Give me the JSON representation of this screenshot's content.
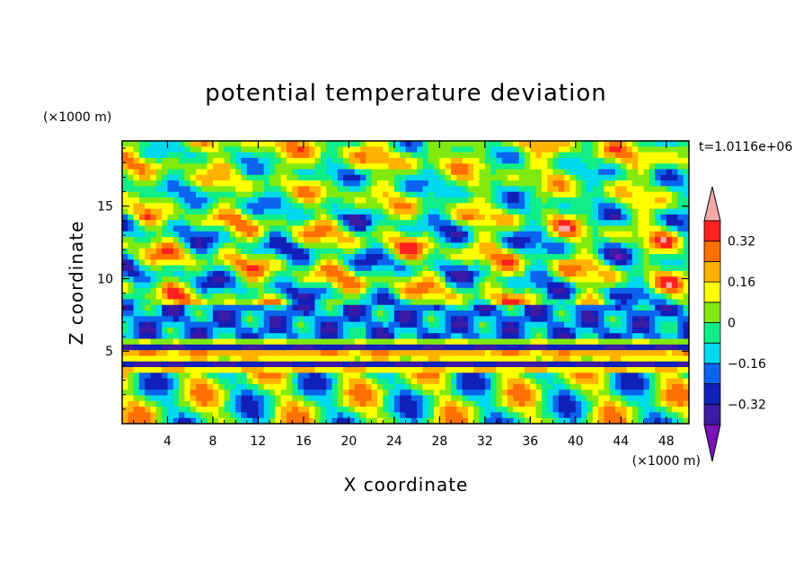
{
  "chart_data": {
    "type": "heatmap",
    "title": "potential temperature deviation",
    "xlabel": "X coordinate",
    "ylabel": "Z coordinate",
    "x_unit": "(×1000 m)",
    "y_unit": "(×1000 m)",
    "time_label": "t=1.0116e+06",
    "xlim": [
      0,
      50
    ],
    "ylim": [
      0,
      19.5
    ],
    "x_ticks": [
      4,
      8,
      12,
      16,
      20,
      24,
      28,
      32,
      36,
      40,
      44,
      48
    ],
    "y_ticks": [
      5,
      10,
      15
    ],
    "colorbar": {
      "levels": [
        -0.4,
        -0.32,
        -0.24,
        -0.16,
        -0.08,
        0,
        0.08,
        0.16,
        0.24,
        0.32,
        0.4
      ],
      "labeled_levels": [
        "0.32",
        "0.16",
        "0",
        "−0.16",
        "−0.32"
      ],
      "labeled_values": [
        0.32,
        0.16,
        0,
        -0.16,
        -0.32
      ],
      "colors_bottom_to_top": [
        "#7a12b8",
        "#3b1aa5",
        "#1020b8",
        "#0a64ee",
        "#00d8ee",
        "#11ee88",
        "#80ea10",
        "#ffff00",
        "#ffb300",
        "#ff7000",
        "#ff2020",
        "#f5a8a8"
      ],
      "extend": "both"
    }
  }
}
